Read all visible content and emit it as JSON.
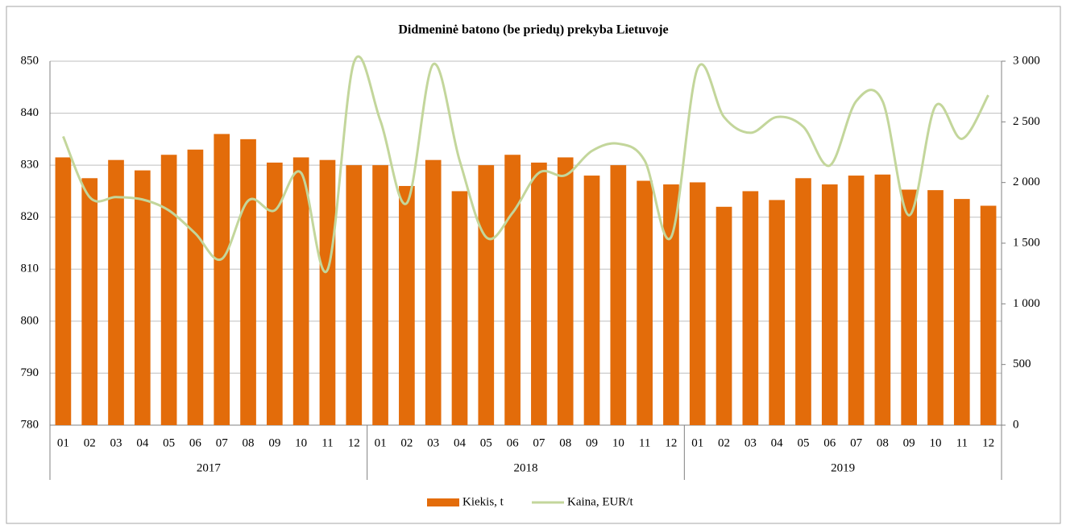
{
  "chart_data": {
    "type": "bar-line",
    "title": "Didmeninė batono  (be priedų) prekyba Lietuvoje",
    "categories": [
      "01",
      "02",
      "03",
      "04",
      "05",
      "06",
      "07",
      "08",
      "09",
      "10",
      "11",
      "12",
      "01",
      "02",
      "03",
      "04",
      "05",
      "06",
      "07",
      "08",
      "09",
      "10",
      "11",
      "12",
      "01",
      "02",
      "03",
      "04",
      "05",
      "06",
      "07",
      "08",
      "09",
      "10",
      "11",
      "12"
    ],
    "years": [
      "2017",
      "2018",
      "2019"
    ],
    "series": [
      {
        "name": "Kiekis, t",
        "type": "bar",
        "color": "#e36c0a",
        "values": [
          831.5,
          827.5,
          831,
          829,
          832,
          833,
          836,
          835,
          830.5,
          831.5,
          831,
          830,
          830,
          826,
          831,
          825,
          830,
          832,
          830.5,
          831.5,
          828,
          830,
          827,
          826.3,
          826.7,
          822,
          825,
          823.3,
          827.5,
          826.3,
          828,
          828.2,
          825.3,
          825.2,
          823.5,
          822.2
        ]
      },
      {
        "name": "Kaina, EUR/t",
        "type": "line",
        "axis": "y2",
        "color": "#c3d69b",
        "values": [
          2380,
          1880,
          1880,
          1860,
          1770,
          1580,
          1370,
          1850,
          1770,
          2080,
          1280,
          2990,
          2510,
          1830,
          2975,
          2180,
          1550,
          1750,
          2080,
          2060,
          2260,
          2320,
          2180,
          1550,
          2940,
          2540,
          2410,
          2540,
          2460,
          2140,
          2670,
          2670,
          1730,
          2630,
          2360,
          2720
        ]
      }
    ],
    "ylim": [
      780,
      850
    ],
    "yticks": [
      780,
      790,
      800,
      810,
      820,
      830,
      840,
      850
    ],
    "y2lim": [
      0,
      3000
    ],
    "y2ticks": [
      0,
      500,
      {
        "value": 1000,
        "label": "1 000"
      },
      {
        "value": 1500,
        "label": "1 500"
      },
      {
        "value": 2000,
        "label": "2 000"
      },
      {
        "value": 2500,
        "label": "2 500"
      },
      {
        "value": 3000,
        "label": "3 000"
      }
    ],
    "grid": true,
    "legend": "bottom"
  }
}
